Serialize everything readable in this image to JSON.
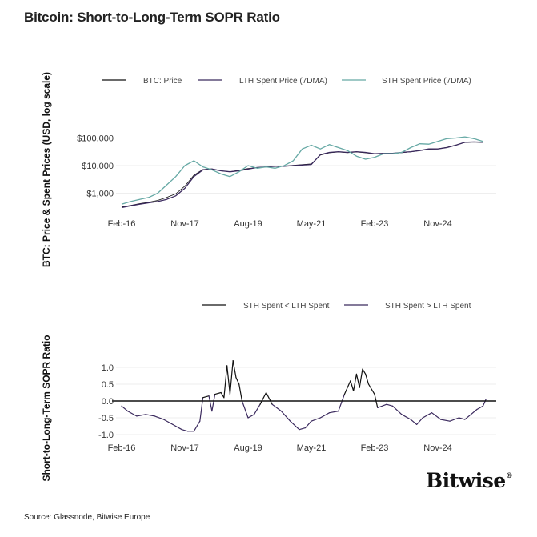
{
  "title": "Bitcoin: Short-to-Long-Term SOPR Ratio",
  "source": "Source: Glassnode, Bitwise Europe",
  "logo": "Bitwise",
  "colors": {
    "btc_price": "#111111",
    "lth": "#3b2a5e",
    "sth": "#66a9a5",
    "sopr_above": "#111111",
    "sopr_below": "#3b2a5e"
  },
  "chart_data": [
    {
      "type": "line",
      "ylabel": "BTC: Price & Spent Prices (USD, log scale)",
      "yscale": "log",
      "ylim": [
        200,
        200000
      ],
      "yticks": [
        1000,
        10000,
        100000
      ],
      "ytick_labels": [
        "$1,000",
        "$10,000",
        "$100,000"
      ],
      "xticks": [
        "2016-02",
        "2017-11",
        "2019-08",
        "2021-05",
        "2023-02",
        "2024-11"
      ],
      "xtick_labels": [
        "Feb-16",
        "Nov-17",
        "Aug-19",
        "May-21",
        "Feb-23",
        "Nov-24"
      ],
      "grid": true,
      "legend": "top",
      "x": [
        "2016-02",
        "2016-05",
        "2016-08",
        "2016-11",
        "2017-02",
        "2017-05",
        "2017-08",
        "2017-11",
        "2018-02",
        "2018-05",
        "2018-08",
        "2018-11",
        "2019-02",
        "2019-05",
        "2019-08",
        "2019-11",
        "2020-02",
        "2020-05",
        "2020-08",
        "2020-11",
        "2021-02",
        "2021-05",
        "2021-08",
        "2021-11",
        "2022-02",
        "2022-05",
        "2022-08",
        "2022-11",
        "2023-02",
        "2023-05",
        "2023-08",
        "2023-11",
        "2024-02",
        "2024-05",
        "2024-08",
        "2024-11",
        "2025-02",
        "2025-05",
        "2025-08",
        "2025-11",
        "2026-02"
      ],
      "series": [
        {
          "name": "BTC: Price",
          "values": [
            320,
            360,
            420,
            470,
            550,
            700,
            950,
            1800,
            4500,
            7200,
            7600,
            6500,
            6000,
            6800,
            7800,
            8400,
            9000,
            9400,
            9600,
            10200,
            10800,
            11500,
            24000,
            29000,
            31000,
            29500,
            31000,
            29000,
            26500,
            27500,
            27500,
            29500,
            31500,
            35000,
            39000,
            40000,
            46000,
            56000,
            69000,
            71000,
            69000
          ]
        },
        {
          "name": "LTH Spent Price (7DMA)",
          "values": [
            300,
            350,
            400,
            450,
            500,
            600,
            800,
            1500,
            4000,
            7000,
            7500,
            6500,
            6000,
            6500,
            7500,
            8500,
            9000,
            9500,
            9500,
            10000,
            10500,
            11000,
            25000,
            30000,
            32000,
            30000,
            32000,
            30000,
            27000,
            28000,
            28000,
            30000,
            32000,
            35000,
            40000,
            40000,
            45000,
            55000,
            70000,
            72000,
            70000
          ]
        },
        {
          "name": "STH Spent Price (7DMA)",
          "values": [
            400,
            500,
            600,
            700,
            1000,
            2000,
            4000,
            10000,
            15000,
            9000,
            7000,
            5000,
            4000,
            6000,
            10000,
            8000,
            9000,
            8000,
            10000,
            15000,
            40000,
            55000,
            40000,
            58000,
            45000,
            35000,
            22000,
            17000,
            20000,
            27000,
            27000,
            30000,
            45000,
            62000,
            60000,
            75000,
            95000,
            100000,
            110000,
            95000,
            75000
          ]
        }
      ]
    },
    {
      "type": "line",
      "ylabel": "Short-to-Long-Term SOPR Ratio",
      "ylim": [
        -1.1,
        1.3
      ],
      "yticks": [
        -1.0,
        -0.5,
        0.0,
        0.5,
        1.0
      ],
      "ytick_labels": [
        "-1.0",
        "-0.5",
        "0.0",
        "0.5",
        "1.0"
      ],
      "xticks": [
        "2016-02",
        "2017-11",
        "2019-08",
        "2021-05",
        "2023-02",
        "2024-11"
      ],
      "xtick_labels": [
        "Feb-16",
        "Nov-17",
        "Aug-19",
        "May-21",
        "Feb-23",
        "Nov-24"
      ],
      "grid": true,
      "legend": "top",
      "legend_entries": [
        "STH Spent < LTH Spent",
        "STH Spent > LTH Spent"
      ],
      "x": [
        "2016-02",
        "2016-04",
        "2016-07",
        "2016-10",
        "2017-01",
        "2017-04",
        "2017-07",
        "2017-10",
        "2017-12",
        "2018-02",
        "2018-04",
        "2018-05",
        "2018-07",
        "2018-08",
        "2018-09",
        "2018-11",
        "2018-12",
        "2019-01",
        "2019-02",
        "2019-03",
        "2019-04",
        "2019-05",
        "2019-06",
        "2019-08",
        "2019-10",
        "2019-12",
        "2020-02",
        "2020-04",
        "2020-07",
        "2020-10",
        "2021-01",
        "2021-03",
        "2021-05",
        "2021-08",
        "2021-11",
        "2022-02",
        "2022-04",
        "2022-06",
        "2022-07",
        "2022-08",
        "2022-09",
        "2022-10",
        "2022-11",
        "2022-12",
        "2023-02",
        "2023-03",
        "2023-06",
        "2023-08",
        "2023-11",
        "2024-02",
        "2024-04",
        "2024-06",
        "2024-09",
        "2024-12",
        "2025-03",
        "2025-06",
        "2025-08",
        "2025-10",
        "2025-12",
        "2026-02",
        "2026-03"
      ],
      "values": [
        -0.15,
        -0.3,
        -0.45,
        -0.4,
        -0.45,
        -0.55,
        -0.7,
        -0.85,
        -0.9,
        -0.9,
        -0.6,
        0.1,
        0.15,
        -0.3,
        0.2,
        0.25,
        0.1,
        1.05,
        0.2,
        1.2,
        0.7,
        0.5,
        0.0,
        -0.5,
        -0.4,
        -0.1,
        0.25,
        -0.1,
        -0.3,
        -0.6,
        -0.85,
        -0.8,
        -0.6,
        -0.5,
        -0.35,
        -0.3,
        0.2,
        0.6,
        0.3,
        0.8,
        0.4,
        0.95,
        0.8,
        0.5,
        0.2,
        -0.2,
        -0.1,
        -0.15,
        -0.4,
        -0.55,
        -0.7,
        -0.5,
        -0.35,
        -0.55,
        -0.6,
        -0.5,
        -0.55,
        -0.4,
        -0.25,
        -0.15,
        0.05
      ]
    }
  ]
}
